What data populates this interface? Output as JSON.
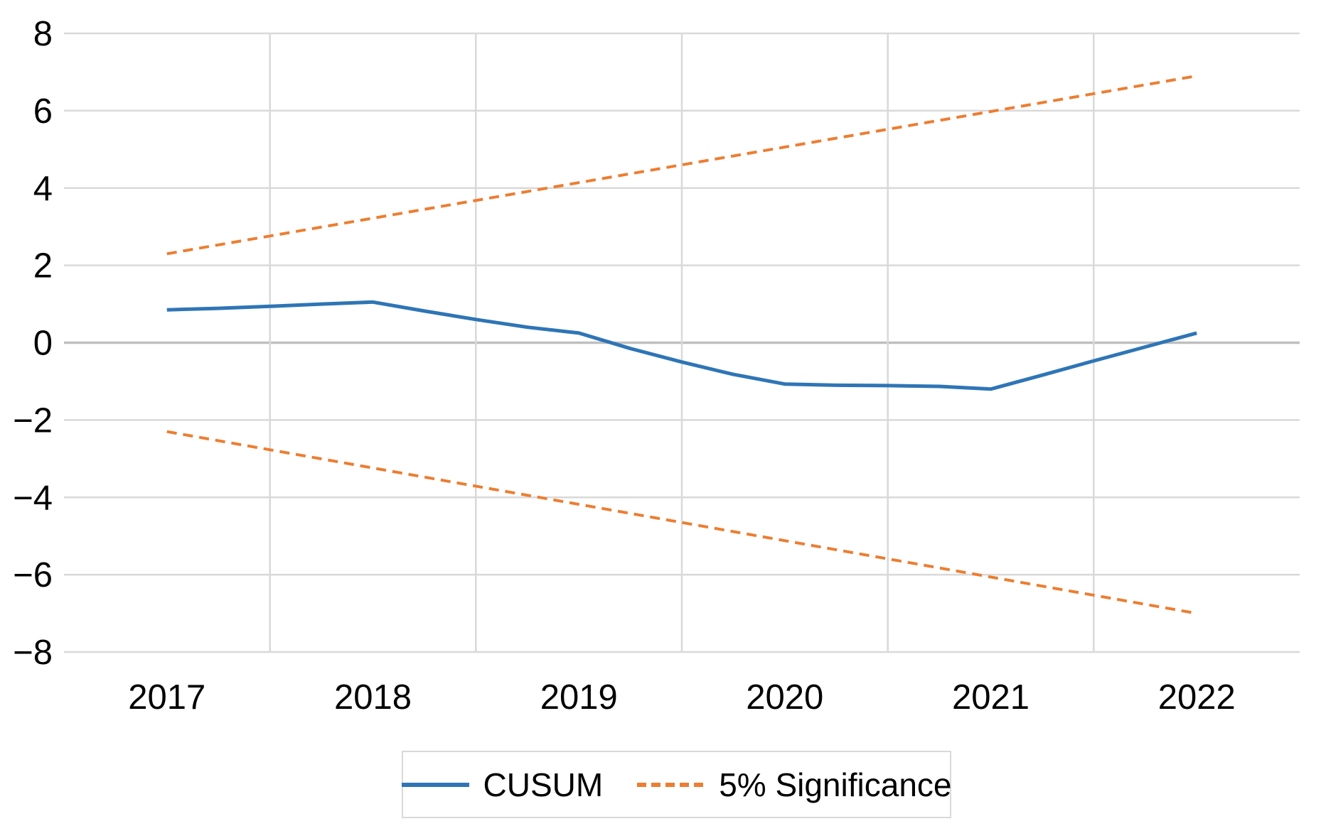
{
  "chart_data": {
    "type": "line",
    "title": "",
    "xlabel": "",
    "ylabel": "",
    "x_categories": [
      "2017",
      "2018",
      "2019",
      "2020",
      "2021",
      "2022"
    ],
    "ylim": [
      -8,
      8
    ],
    "grid": true,
    "legend_position": "bottom",
    "y_ticks": [
      {
        "value": 8,
        "label": "8"
      },
      {
        "value": 6,
        "label": "6"
      },
      {
        "value": 4,
        "label": "4"
      },
      {
        "value": 2,
        "label": "2"
      },
      {
        "value": 0,
        "label": "0"
      },
      {
        "value": -2,
        "label": "−2"
      },
      {
        "value": -4,
        "label": "−4"
      },
      {
        "value": -6,
        "label": "−6"
      },
      {
        "value": -8,
        "label": "−8"
      }
    ],
    "series": [
      {
        "name": "CUSUM",
        "slug": "cusum-line",
        "color": "#2E75B6",
        "style": "solid",
        "x": [
          2017,
          2017.25,
          2017.5,
          2017.75,
          2018,
          2018.25,
          2018.5,
          2018.75,
          2019,
          2019.25,
          2019.5,
          2019.75,
          2020,
          2020.25,
          2020.5,
          2020.75,
          2021,
          2021.25,
          2021.5,
          2021.75,
          2022
        ],
        "values": [
          0.85,
          0.89,
          0.94,
          1.0,
          1.05,
          0.82,
          0.6,
          0.4,
          0.25,
          -0.15,
          -0.5,
          -0.82,
          -1.07,
          -1.1,
          -1.11,
          -1.13,
          -1.2,
          -0.84,
          -0.47,
          -0.11,
          0.25
        ]
      },
      {
        "name": "5% Significance (upper bound)",
        "slug": "significance-upper-line",
        "color": "#ED7D31",
        "style": "dashed",
        "x": [
          2017,
          2022
        ],
        "values": [
          2.3,
          6.9
        ]
      },
      {
        "name": "5% Significance (lower bound)",
        "slug": "significance-lower-line",
        "color": "#ED7D31",
        "style": "dashed",
        "x": [
          2017,
          2022
        ],
        "values": [
          -2.3,
          -7.0
        ]
      }
    ]
  },
  "legend": {
    "items": [
      {
        "label": "CUSUM",
        "style": "solid",
        "color": "#2E75B6"
      },
      {
        "label": "5% Significance",
        "style": "dashed",
        "color": "#ED7D31"
      }
    ]
  },
  "colors": {
    "cusum": "#2E75B6",
    "significance": "#ED7D31",
    "gridline": "#D9D9D9",
    "zero_line": "#BFBFBF",
    "legend_border": "#D9D9D9",
    "text": "#000000",
    "background": "#FFFFFF"
  }
}
